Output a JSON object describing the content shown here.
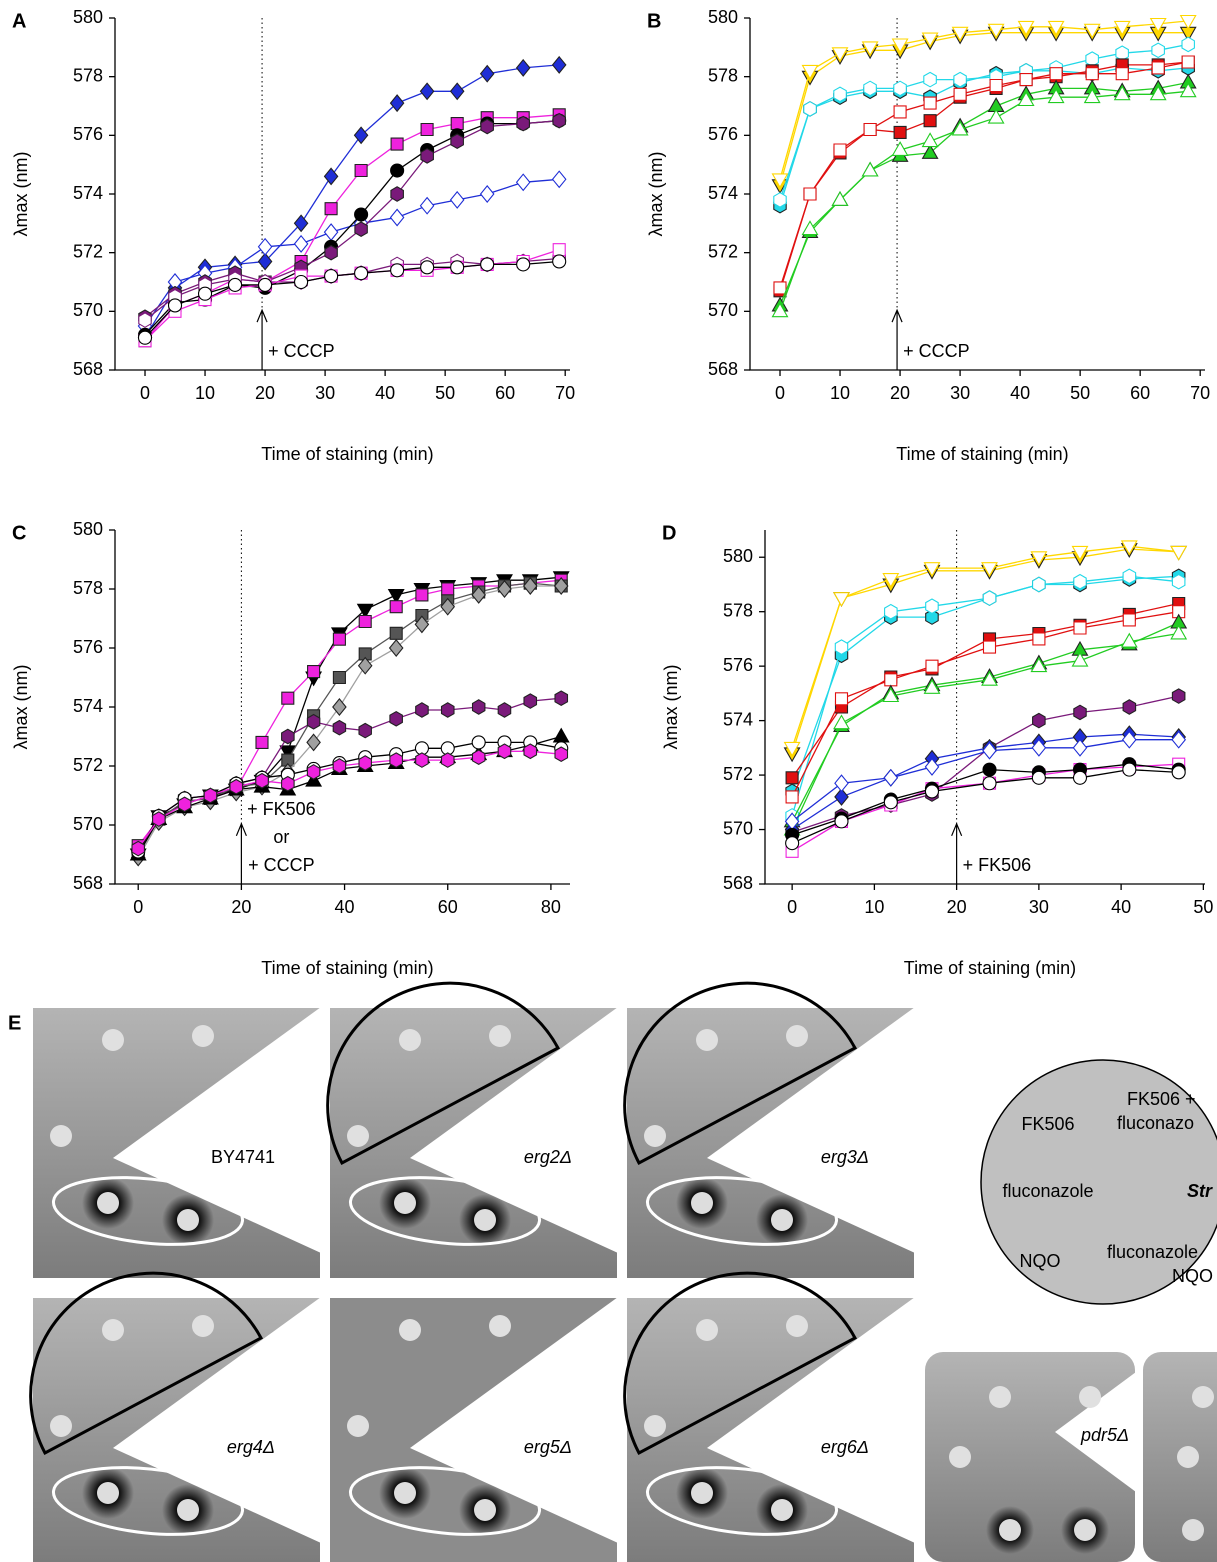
{
  "chart_data": [
    {
      "type": "line",
      "panel": "A",
      "xlabel": "Time of staining (min)",
      "ylabel": "λmax (nm)",
      "xlim": [
        -5,
        70.8
      ],
      "xticks": [
        0,
        10,
        20,
        30,
        40,
        50,
        60,
        70
      ],
      "ylim": [
        568,
        580
      ],
      "yticks": [
        568,
        570,
        572,
        574,
        576,
        578,
        580
      ],
      "annotation": {
        "x": 19.5,
        "text": [
          "+ CCCP"
        ]
      },
      "x": [
        0,
        5,
        10,
        15,
        20,
        26,
        31,
        36,
        42,
        47,
        52,
        57,
        63,
        69
      ],
      "series": [
        {
          "color": "#1f2ed6",
          "marker": "diamond",
          "filled": true,
          "values": [
            569.1,
            570.8,
            571.5,
            571.6,
            571.7,
            573.0,
            574.6,
            576.0,
            577.1,
            577.5,
            577.5,
            578.1,
            578.3,
            578.4
          ]
        },
        {
          "color": "#1f2ed6",
          "marker": "diamond",
          "filled": false,
          "values": [
            569.5,
            571.0,
            571.3,
            571.5,
            572.2,
            572.3,
            572.7,
            573.0,
            573.2,
            573.6,
            573.8,
            574.0,
            574.4,
            574.5
          ]
        },
        {
          "color": "#ee22dd",
          "marker": "square",
          "filled": true,
          "values": [
            569.0,
            570.2,
            570.6,
            571.1,
            571.0,
            571.7,
            573.5,
            574.8,
            575.7,
            576.2,
            576.4,
            576.6,
            576.6,
            576.7
          ]
        },
        {
          "color": "#000000",
          "marker": "circle",
          "filled": true,
          "values": [
            569.2,
            570.3,
            570.4,
            570.9,
            570.8,
            571.4,
            572.2,
            573.3,
            574.8,
            575.5,
            576.0,
            576.4,
            576.4,
            576.5
          ]
        },
        {
          "color": "#7a1a7a",
          "marker": "hexagon",
          "filled": true,
          "values": [
            569.8,
            570.6,
            571.0,
            571.3,
            571.0,
            571.5,
            572.0,
            572.8,
            574.0,
            575.3,
            575.8,
            576.3,
            576.4,
            576.5
          ]
        },
        {
          "color": "#7a1a7a",
          "marker": "hexagon",
          "filled": false,
          "values": [
            569.7,
            570.5,
            570.9,
            571.1,
            571.0,
            571.0,
            571.2,
            571.3,
            571.6,
            571.6,
            571.7,
            571.6,
            571.7,
            571.8
          ]
        },
        {
          "color": "#ee22dd",
          "marker": "square",
          "filled": false,
          "values": [
            569.0,
            570.0,
            570.4,
            570.8,
            570.9,
            571.2,
            571.2,
            571.3,
            571.4,
            571.4,
            571.5,
            571.6,
            571.7,
            572.1
          ]
        },
        {
          "color": "#000000",
          "marker": "circle",
          "filled": false,
          "values": [
            569.1,
            570.2,
            570.6,
            570.9,
            570.9,
            571.0,
            571.2,
            571.3,
            571.4,
            571.5,
            571.5,
            571.6,
            571.6,
            571.7
          ]
        }
      ]
    },
    {
      "type": "line",
      "panel": "B",
      "xlabel": "Time of staining (min)",
      "ylabel": "λmax (nm)",
      "xlim": [
        -5,
        70.8
      ],
      "xticks": [
        0,
        10,
        20,
        30,
        40,
        50,
        60,
        70
      ],
      "ylim": [
        568,
        580
      ],
      "yticks": [
        568,
        570,
        572,
        574,
        576,
        578,
        580
      ],
      "annotation": {
        "x": 19.5,
        "text": [
          "+ CCCP"
        ]
      },
      "x": [
        0,
        5,
        10,
        15,
        20,
        25,
        30,
        36,
        41,
        46,
        52,
        57,
        63,
        68
      ],
      "series": [
        {
          "color": "#ffd700",
          "marker": "triangle-down",
          "filled": true,
          "values": [
            574.3,
            578.0,
            578.7,
            578.9,
            578.9,
            579.2,
            579.4,
            579.5,
            579.5,
            579.5,
            579.5,
            579.5,
            579.5,
            579.5
          ]
        },
        {
          "color": "#ffd700",
          "marker": "triangle-down",
          "filled": false,
          "values": [
            574.5,
            578.2,
            578.8,
            579.0,
            579.1,
            579.3,
            579.5,
            579.6,
            579.7,
            579.7,
            579.6,
            579.7,
            579.8,
            579.9
          ]
        },
        {
          "color": "#22d8e8",
          "marker": "hexagon",
          "filled": true,
          "values": [
            573.6,
            576.9,
            577.3,
            577.5,
            577.5,
            577.3,
            577.8,
            578.1,
            578.2,
            578.2,
            578.1,
            578.3,
            578.2,
            578.3
          ]
        },
        {
          "color": "#22d8e8",
          "marker": "hexagon",
          "filled": false,
          "values": [
            573.8,
            576.9,
            577.4,
            577.6,
            577.6,
            577.9,
            577.9,
            578.0,
            578.2,
            578.3,
            578.6,
            578.8,
            578.9,
            579.1
          ]
        },
        {
          "color": "#e01010",
          "marker": "square",
          "filled": true,
          "values": [
            570.7,
            574.0,
            575.4,
            576.2,
            576.1,
            576.5,
            577.3,
            577.6,
            577.9,
            578.0,
            578.2,
            578.4,
            578.4,
            578.5
          ]
        },
        {
          "color": "#e01010",
          "marker": "square",
          "filled": false,
          "values": [
            570.8,
            574.0,
            575.5,
            576.2,
            576.8,
            577.1,
            577.4,
            577.7,
            577.9,
            578.1,
            578.1,
            578.1,
            578.3,
            578.5
          ]
        },
        {
          "color": "#22cc22",
          "marker": "triangle-up",
          "filled": true,
          "values": [
            570.2,
            572.7,
            573.8,
            574.8,
            575.3,
            575.4,
            576.3,
            577.0,
            577.4,
            577.6,
            577.6,
            577.5,
            577.6,
            577.8
          ]
        },
        {
          "color": "#22cc22",
          "marker": "triangle-up",
          "filled": false,
          "values": [
            570.0,
            572.8,
            573.8,
            574.8,
            575.5,
            575.8,
            576.2,
            576.6,
            577.2,
            577.3,
            577.3,
            577.4,
            577.4,
            577.5
          ]
        }
      ]
    },
    {
      "type": "line",
      "panel": "C",
      "xlabel": "Time of staining (min)",
      "ylabel": "λmax (nm)",
      "xlim": [
        -4.5,
        83.7
      ],
      "xticks": [
        0,
        20,
        40,
        60,
        80
      ],
      "ylim": [
        568,
        580
      ],
      "yticks": [
        568,
        570,
        572,
        574,
        576,
        578,
        580
      ],
      "annotation": {
        "x": 20,
        "text": [
          "+ FK506",
          "or",
          "+ CCCP"
        ]
      },
      "x": [
        0,
        4,
        9,
        14,
        19,
        24,
        29,
        34,
        39,
        44,
        50,
        55,
        60,
        66,
        71,
        76,
        82
      ],
      "series": [
        {
          "color": "#000000",
          "marker": "triangle-down",
          "filled": true,
          "values": [
            569.0,
            570.3,
            570.7,
            571.0,
            571.2,
            571.5,
            572.5,
            575.0,
            576.5,
            577.3,
            577.8,
            578.0,
            578.1,
            578.2,
            578.3,
            578.3,
            578.4
          ]
        },
        {
          "color": "#ee22dd",
          "marker": "square",
          "filled": true,
          "values": [
            569.3,
            570.2,
            570.8,
            570.9,
            571.2,
            572.8,
            574.3,
            575.2,
            576.3,
            576.9,
            577.4,
            577.8,
            578.0,
            578.1,
            578.1,
            578.2,
            578.3
          ]
        },
        {
          "color": "#555555",
          "marker": "square",
          "filled": true,
          "values": [
            569.1,
            570.2,
            570.8,
            570.9,
            571.3,
            571.4,
            572.2,
            573.7,
            575.0,
            575.8,
            576.5,
            577.1,
            577.6,
            577.9,
            578.1,
            578.2,
            578.1
          ]
        },
        {
          "color": "#a0a0a0",
          "marker": "diamond",
          "filled": true,
          "values": [
            568.9,
            570.1,
            570.6,
            570.8,
            571.1,
            571.3,
            571.8,
            572.8,
            574.0,
            575.4,
            576.0,
            576.8,
            577.4,
            577.8,
            578.0,
            578.1,
            578.1
          ]
        },
        {
          "color": "#7a1a7a",
          "marker": "hexagon",
          "filled": true,
          "values": [
            569.1,
            570.3,
            570.9,
            571.0,
            571.4,
            571.6,
            573.0,
            573.5,
            573.3,
            573.2,
            573.6,
            573.9,
            573.9,
            574.0,
            573.9,
            574.2,
            574.3
          ]
        },
        {
          "color": "#000000",
          "marker": "triangle-up",
          "filled": true,
          "values": [
            569.0,
            570.2,
            570.6,
            570.9,
            571.2,
            571.3,
            571.2,
            571.5,
            571.9,
            572.0,
            572.1,
            572.3,
            572.3,
            572.4,
            572.5,
            572.7,
            573.0
          ]
        },
        {
          "color": "#000000",
          "marker": "circle",
          "filled": false,
          "values": [
            569.1,
            570.3,
            570.9,
            571.0,
            571.4,
            571.6,
            571.7,
            571.9,
            572.1,
            572.3,
            572.4,
            572.6,
            572.6,
            572.8,
            572.8,
            572.8,
            572.6
          ]
        },
        {
          "color": "#ee22dd",
          "marker": "hexagon",
          "filled": true,
          "values": [
            569.2,
            570.2,
            570.7,
            571.0,
            571.3,
            571.5,
            571.4,
            571.8,
            572.0,
            572.1,
            572.2,
            572.2,
            572.2,
            572.3,
            572.5,
            572.5,
            572.4
          ]
        }
      ]
    },
    {
      "type": "line",
      "panel": "D",
      "xlabel": "Time of staining (min)",
      "ylabel": "λmax (nm)",
      "xlim": [
        -3.3,
        50.2
      ],
      "xticks": [
        0,
        10,
        20,
        30,
        40,
        50
      ],
      "ylim": [
        568,
        581
      ],
      "yticks": [
        568,
        570,
        572,
        574,
        576,
        578,
        580
      ],
      "annotation": {
        "x": 20,
        "text": [
          "+ FK506"
        ]
      },
      "x": [
        0,
        6,
        12,
        17,
        24,
        30,
        35,
        41,
        47
      ],
      "series": [
        {
          "color": "#ffd700",
          "marker": "triangle-down",
          "filled": true,
          "values": [
            572.8,
            578.5,
            579.0,
            579.5,
            579.5,
            579.9,
            580.0,
            580.3,
            580.2
          ]
        },
        {
          "color": "#ffd700",
          "marker": "triangle-down",
          "filled": false,
          "values": [
            573.0,
            578.5,
            579.2,
            579.6,
            579.6,
            580.0,
            580.2,
            580.4,
            580.2
          ]
        },
        {
          "color": "#22d8e8",
          "marker": "hexagon",
          "filled": true,
          "values": [
            571.4,
            576.4,
            577.8,
            577.8,
            578.5,
            579.0,
            579.0,
            579.2,
            579.3
          ]
        },
        {
          "color": "#22d8e8",
          "marker": "hexagon",
          "filled": false,
          "values": [
            570.5,
            576.7,
            578.0,
            578.2,
            578.5,
            579.0,
            579.1,
            579.3,
            579.1
          ]
        },
        {
          "color": "#e01010",
          "marker": "square",
          "filled": true,
          "values": [
            571.9,
            574.5,
            575.6,
            575.9,
            577.0,
            577.2,
            577.5,
            577.9,
            578.3
          ]
        },
        {
          "color": "#e01010",
          "marker": "square",
          "filled": false,
          "values": [
            571.2,
            574.8,
            575.5,
            576.0,
            576.7,
            577.0,
            577.4,
            577.7,
            578.0
          ]
        },
        {
          "color": "#22cc22",
          "marker": "triangle-up",
          "filled": true,
          "values": [
            570.3,
            573.8,
            575.0,
            575.3,
            575.6,
            576.1,
            576.6,
            576.8,
            577.6
          ]
        },
        {
          "color": "#22cc22",
          "marker": "triangle-up",
          "filled": false,
          "values": [
            570.0,
            573.9,
            574.9,
            575.2,
            575.5,
            576.0,
            576.2,
            576.9,
            577.2
          ]
        },
        {
          "color": "#7a1a7a",
          "marker": "hexagon",
          "filled": true,
          "values": [
            569.9,
            570.5,
            570.9,
            571.3,
            573.0,
            574.0,
            574.3,
            574.5,
            574.9
          ]
        },
        {
          "color": "#1f2ed6",
          "marker": "diamond",
          "filled": true,
          "values": [
            570.0,
            571.2,
            571.9,
            572.6,
            573.0,
            573.2,
            573.4,
            573.5,
            573.4
          ]
        },
        {
          "color": "#1f2ed6",
          "marker": "diamond",
          "filled": false,
          "values": [
            570.3,
            571.7,
            571.9,
            572.3,
            572.9,
            573.0,
            573.0,
            573.3,
            573.3
          ]
        },
        {
          "color": "#ee22dd",
          "marker": "square",
          "filled": false,
          "values": [
            569.2,
            570.3,
            570.9,
            571.5,
            571.7,
            572.0,
            572.2,
            572.3,
            572.4
          ]
        },
        {
          "color": "#000000",
          "marker": "circle",
          "filled": true,
          "values": [
            569.8,
            570.4,
            571.1,
            571.5,
            572.2,
            572.1,
            572.2,
            572.4,
            572.2
          ]
        },
        {
          "color": "#000000",
          "marker": "circle",
          "filled": false,
          "values": [
            569.5,
            570.3,
            571.0,
            571.4,
            571.7,
            571.9,
            571.9,
            572.2,
            572.1
          ]
        }
      ]
    }
  ],
  "panel_e": {
    "label": "E",
    "plates": [
      "BY4741",
      "erg2Δ",
      "erg3Δ",
      "erg4Δ",
      "erg5Δ",
      "erg6Δ",
      "pdr5Δ"
    ],
    "key": [
      "FK506",
      "FK506 +",
      "fluconazo",
      "fluconazole",
      "Str",
      "NQO",
      "fluconazole",
      "NQO"
    ]
  }
}
